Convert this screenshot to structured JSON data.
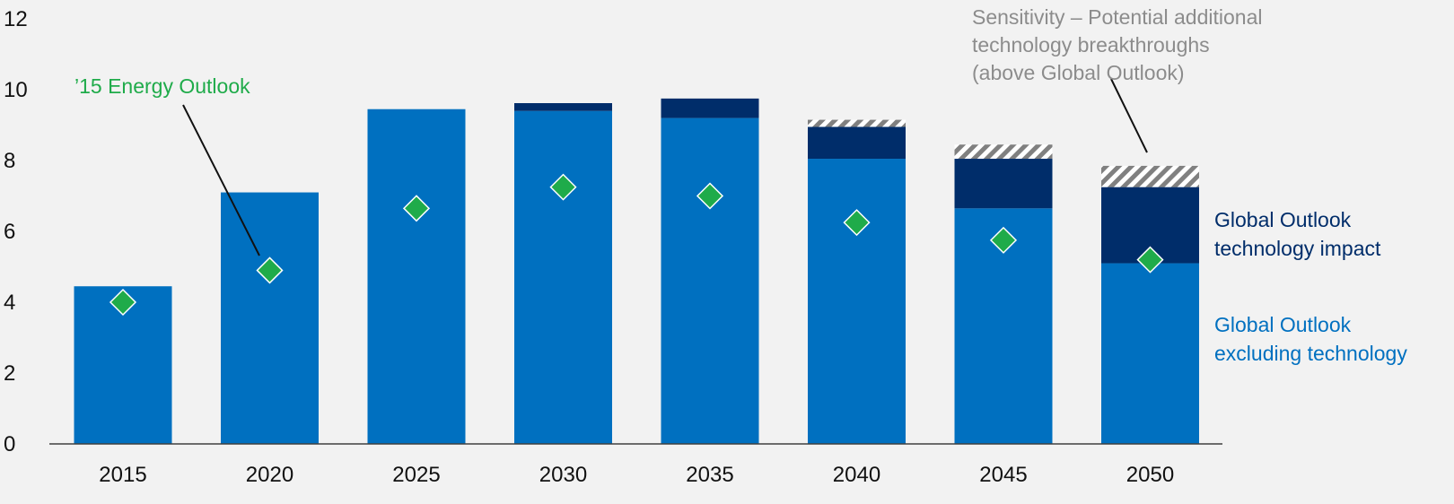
{
  "colors": {
    "background": "#f2f2f2",
    "base": "#0070c0",
    "tech": "#002d6a",
    "sensitivity_stripe": "#808080",
    "outlook_marker": "#1fab4a",
    "axis": "#404040",
    "annotation_gray": "#8c8c8c"
  },
  "chart_data": {
    "type": "bar",
    "stacked": true,
    "categories": [
      "2015",
      "2020",
      "2025",
      "2030",
      "2035",
      "2040",
      "2045",
      "2050"
    ],
    "y_ticks": [
      "0",
      "2",
      "4",
      "6",
      "8",
      "10",
      "12"
    ],
    "ylim": [
      0,
      12
    ],
    "grid": false,
    "series": [
      {
        "name": "Global Outlook excluding technology",
        "name_lines": [
          "Global Outlook",
          "excluding technology"
        ],
        "values": [
          4.45,
          7.1,
          9.45,
          9.4,
          9.2,
          8.05,
          6.65,
          5.1
        ],
        "color": "#0070c0"
      },
      {
        "name": "Global Outlook technology impact",
        "name_lines": [
          "Global Outlook",
          "technology impact"
        ],
        "values": [
          0,
          0,
          0,
          0.22,
          0.55,
          0.9,
          1.4,
          2.15
        ],
        "color": "#002d6a"
      },
      {
        "name": "Sensitivity – Potential additional technology breakthroughs (above Global Outlook)",
        "name_lines": [
          "Sensitivity – Potential additional",
          "technology breakthroughs",
          "(above Global Outlook)"
        ],
        "values": [
          0,
          0,
          0,
          0,
          0,
          0.2,
          0.4,
          0.6
        ],
        "pattern": "diagonal-stripes"
      }
    ],
    "markers": {
      "name": "’15 Energy Outlook",
      "values": [
        4.0,
        4.9,
        6.65,
        7.25,
        7.0,
        6.25,
        5.75,
        5.2
      ],
      "shape": "diamond",
      "color": "#1fab4a"
    }
  }
}
